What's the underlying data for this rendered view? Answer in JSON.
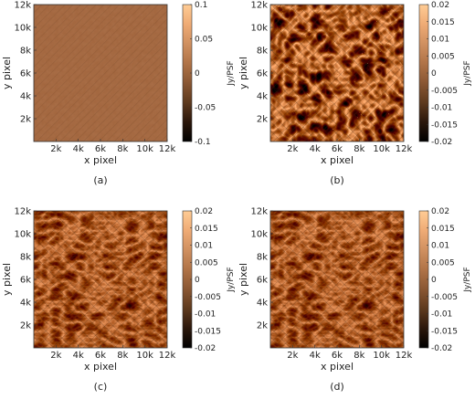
{
  "colors": {
    "colormap": [
      "#000000",
      "#2b170b",
      "#5e3a1e",
      "#8a5733",
      "#b07347",
      "#d09060",
      "#efab75",
      "#ffcc95"
    ]
  },
  "panels": [
    {
      "id": "a",
      "caption": "(a)",
      "xlabel": "x pixel",
      "ylabel": "y pixel",
      "xticks": [
        "2k",
        "4k",
        "6k",
        "8k",
        "10k",
        "12k"
      ],
      "yticks": [
        "2k",
        "4k",
        "6k",
        "8k",
        "10k",
        "12k"
      ],
      "cbar_label": "Jy/PSF",
      "cbar_ticks": [
        "0.1",
        "0.05",
        "0",
        "-0.05",
        "-0.1"
      ],
      "cbar_range": [
        -0.1,
        0.1
      ]
    },
    {
      "id": "b",
      "caption": "(b)",
      "xlabel": "x pixel",
      "ylabel": "y pixel",
      "xticks": [
        "2k",
        "4k",
        "6k",
        "8k",
        "10k",
        "12k"
      ],
      "yticks": [
        "2k",
        "4k",
        "6k",
        "8k",
        "10k",
        "12k"
      ],
      "cbar_label": "Jy/PSF",
      "cbar_ticks": [
        "0.02",
        "0.015",
        "0.01",
        "0.005",
        "0",
        "-0.005",
        "-0.01",
        "-0.015",
        "-0.02"
      ],
      "cbar_range": [
        -0.02,
        0.02
      ]
    },
    {
      "id": "c",
      "caption": "(c)",
      "xlabel": "x pixel",
      "ylabel": "y pixel",
      "xticks": [
        "2k",
        "4k",
        "6k",
        "8k",
        "10k",
        "12k"
      ],
      "yticks": [
        "2k",
        "4k",
        "6k",
        "8k",
        "10k",
        "12k"
      ],
      "cbar_label": "Jy/PSF",
      "cbar_ticks": [
        "0.02",
        "0.015",
        "0.01",
        "0.005",
        "0",
        "-0.005",
        "-0.01",
        "-0.015",
        "-0.02"
      ],
      "cbar_range": [
        -0.02,
        0.02
      ]
    },
    {
      "id": "d",
      "caption": "(d)",
      "xlabel": "x pixel",
      "ylabel": "y pixel",
      "xticks": [
        "2k",
        "4k",
        "6k",
        "8k",
        "10k",
        "12k"
      ],
      "yticks": [
        "2k",
        "4k",
        "6k",
        "8k",
        "10k",
        "12k"
      ],
      "cbar_label": "Jy/PSF",
      "cbar_ticks": [
        "0.02",
        "0.015",
        "0.01",
        "0.005",
        "0",
        "-0.005",
        "-0.01",
        "-0.015",
        "-0.02"
      ],
      "cbar_range": [
        -0.02,
        0.02
      ]
    }
  ]
}
